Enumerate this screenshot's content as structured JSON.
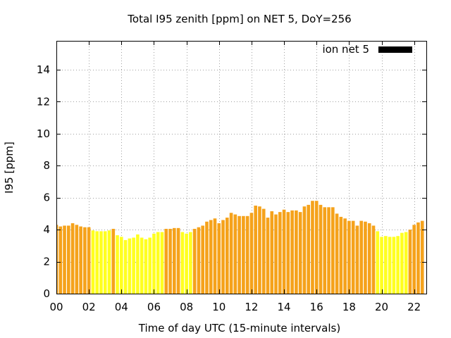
{
  "chart_data": {
    "type": "bar",
    "title": "Total I95 zenith [ppm] on NET 5, DoY=256",
    "xlabel": "Time of day UTC (15-minute intervals)",
    "ylabel": "I95 [ppm]",
    "xlim": [
      0,
      22.75
    ],
    "ylim": [
      0,
      15.8
    ],
    "grid": true,
    "legend": {
      "placement": "top-right",
      "entries": [
        {
          "label": "ion net 5",
          "color": "#000000"
        }
      ]
    },
    "x_ticks": [
      "00",
      "02",
      "04",
      "06",
      "08",
      "10",
      "12",
      "14",
      "16",
      "18",
      "20",
      "22"
    ],
    "x_tick_values": [
      0,
      2,
      4,
      6,
      8,
      10,
      12,
      14,
      16,
      18,
      20,
      22
    ],
    "y_ticks": [
      "0",
      "2",
      "4",
      "6",
      "8",
      "10",
      "12",
      "14"
    ],
    "y_tick_values": [
      0,
      2,
      4,
      6,
      8,
      10,
      12,
      14
    ],
    "series_colors": {
      "orange": "#f5a21b",
      "yellow": "#ffff20"
    },
    "bar_width_hours": 0.2,
    "bars": [
      {
        "x": 0.0,
        "y": 4.3,
        "color": "orange"
      },
      {
        "x": 0.25,
        "y": 4.2,
        "color": "orange"
      },
      {
        "x": 0.5,
        "y": 4.25,
        "color": "orange"
      },
      {
        "x": 0.75,
        "y": 4.25,
        "color": "orange"
      },
      {
        "x": 1.0,
        "y": 4.4,
        "color": "orange"
      },
      {
        "x": 1.25,
        "y": 4.3,
        "color": "orange"
      },
      {
        "x": 1.5,
        "y": 4.2,
        "color": "orange"
      },
      {
        "x": 1.75,
        "y": 4.15,
        "color": "orange"
      },
      {
        "x": 2.0,
        "y": 4.15,
        "color": "orange"
      },
      {
        "x": 2.25,
        "y": 3.95,
        "color": "yellow"
      },
      {
        "x": 2.5,
        "y": 3.9,
        "color": "yellow"
      },
      {
        "x": 2.75,
        "y": 3.9,
        "color": "yellow"
      },
      {
        "x": 3.0,
        "y": 3.9,
        "color": "yellow"
      },
      {
        "x": 3.25,
        "y": 3.95,
        "color": "yellow"
      },
      {
        "x": 3.5,
        "y": 4.05,
        "color": "orange"
      },
      {
        "x": 3.75,
        "y": 3.65,
        "color": "yellow"
      },
      {
        "x": 4.0,
        "y": 3.55,
        "color": "yellow"
      },
      {
        "x": 4.25,
        "y": 3.35,
        "color": "yellow"
      },
      {
        "x": 4.5,
        "y": 3.45,
        "color": "yellow"
      },
      {
        "x": 4.75,
        "y": 3.5,
        "color": "yellow"
      },
      {
        "x": 5.0,
        "y": 3.7,
        "color": "yellow"
      },
      {
        "x": 5.25,
        "y": 3.5,
        "color": "yellow"
      },
      {
        "x": 5.5,
        "y": 3.4,
        "color": "yellow"
      },
      {
        "x": 5.75,
        "y": 3.5,
        "color": "yellow"
      },
      {
        "x": 6.0,
        "y": 3.75,
        "color": "yellow"
      },
      {
        "x": 6.25,
        "y": 3.85,
        "color": "yellow"
      },
      {
        "x": 6.5,
        "y": 3.85,
        "color": "yellow"
      },
      {
        "x": 6.75,
        "y": 4.05,
        "color": "orange"
      },
      {
        "x": 7.0,
        "y": 4.05,
        "color": "orange"
      },
      {
        "x": 7.25,
        "y": 4.1,
        "color": "orange"
      },
      {
        "x": 7.5,
        "y": 4.1,
        "color": "orange"
      },
      {
        "x": 7.75,
        "y": 3.85,
        "color": "yellow"
      },
      {
        "x": 8.0,
        "y": 3.75,
        "color": "yellow"
      },
      {
        "x": 8.25,
        "y": 3.85,
        "color": "yellow"
      },
      {
        "x": 8.5,
        "y": 4.05,
        "color": "orange"
      },
      {
        "x": 8.75,
        "y": 4.15,
        "color": "orange"
      },
      {
        "x": 9.0,
        "y": 4.25,
        "color": "orange"
      },
      {
        "x": 9.25,
        "y": 4.5,
        "color": "orange"
      },
      {
        "x": 9.5,
        "y": 4.6,
        "color": "orange"
      },
      {
        "x": 9.75,
        "y": 4.7,
        "color": "orange"
      },
      {
        "x": 10.0,
        "y": 4.4,
        "color": "orange"
      },
      {
        "x": 10.25,
        "y": 4.6,
        "color": "orange"
      },
      {
        "x": 10.5,
        "y": 4.75,
        "color": "orange"
      },
      {
        "x": 10.75,
        "y": 5.05,
        "color": "orange"
      },
      {
        "x": 11.0,
        "y": 4.95,
        "color": "orange"
      },
      {
        "x": 11.25,
        "y": 4.85,
        "color": "orange"
      },
      {
        "x": 11.5,
        "y": 4.85,
        "color": "orange"
      },
      {
        "x": 11.75,
        "y": 4.85,
        "color": "orange"
      },
      {
        "x": 12.0,
        "y": 5.05,
        "color": "orange"
      },
      {
        "x": 12.25,
        "y": 5.5,
        "color": "orange"
      },
      {
        "x": 12.5,
        "y": 5.45,
        "color": "orange"
      },
      {
        "x": 12.75,
        "y": 5.3,
        "color": "orange"
      },
      {
        "x": 13.0,
        "y": 4.75,
        "color": "orange"
      },
      {
        "x": 13.25,
        "y": 5.15,
        "color": "orange"
      },
      {
        "x": 13.5,
        "y": 4.95,
        "color": "orange"
      },
      {
        "x": 13.75,
        "y": 5.1,
        "color": "orange"
      },
      {
        "x": 14.0,
        "y": 5.25,
        "color": "orange"
      },
      {
        "x": 14.25,
        "y": 5.1,
        "color": "orange"
      },
      {
        "x": 14.5,
        "y": 5.2,
        "color": "orange"
      },
      {
        "x": 14.75,
        "y": 5.2,
        "color": "orange"
      },
      {
        "x": 15.0,
        "y": 5.1,
        "color": "orange"
      },
      {
        "x": 15.25,
        "y": 5.45,
        "color": "orange"
      },
      {
        "x": 15.5,
        "y": 5.55,
        "color": "orange"
      },
      {
        "x": 15.75,
        "y": 5.8,
        "color": "orange"
      },
      {
        "x": 16.0,
        "y": 5.8,
        "color": "orange"
      },
      {
        "x": 16.25,
        "y": 5.55,
        "color": "orange"
      },
      {
        "x": 16.5,
        "y": 5.4,
        "color": "orange"
      },
      {
        "x": 16.75,
        "y": 5.4,
        "color": "orange"
      },
      {
        "x": 17.0,
        "y": 5.4,
        "color": "orange"
      },
      {
        "x": 17.25,
        "y": 5.0,
        "color": "orange"
      },
      {
        "x": 17.5,
        "y": 4.8,
        "color": "orange"
      },
      {
        "x": 17.75,
        "y": 4.7,
        "color": "orange"
      },
      {
        "x": 18.0,
        "y": 4.55,
        "color": "orange"
      },
      {
        "x": 18.25,
        "y": 4.55,
        "color": "orange"
      },
      {
        "x": 18.5,
        "y": 4.25,
        "color": "orange"
      },
      {
        "x": 18.75,
        "y": 4.55,
        "color": "orange"
      },
      {
        "x": 19.0,
        "y": 4.5,
        "color": "orange"
      },
      {
        "x": 19.25,
        "y": 4.4,
        "color": "orange"
      },
      {
        "x": 19.5,
        "y": 4.25,
        "color": "orange"
      },
      {
        "x": 19.75,
        "y": 3.9,
        "color": "yellow"
      },
      {
        "x": 20.0,
        "y": 3.55,
        "color": "yellow"
      },
      {
        "x": 20.25,
        "y": 3.6,
        "color": "yellow"
      },
      {
        "x": 20.5,
        "y": 3.55,
        "color": "yellow"
      },
      {
        "x": 20.75,
        "y": 3.55,
        "color": "yellow"
      },
      {
        "x": 21.0,
        "y": 3.6,
        "color": "yellow"
      },
      {
        "x": 21.25,
        "y": 3.8,
        "color": "yellow"
      },
      {
        "x": 21.5,
        "y": 3.85,
        "color": "yellow"
      },
      {
        "x": 21.75,
        "y": 4.0,
        "color": "orange"
      },
      {
        "x": 22.0,
        "y": 4.3,
        "color": "orange"
      },
      {
        "x": 22.25,
        "y": 4.45,
        "color": "orange"
      },
      {
        "x": 22.5,
        "y": 4.55,
        "color": "orange"
      }
    ]
  }
}
